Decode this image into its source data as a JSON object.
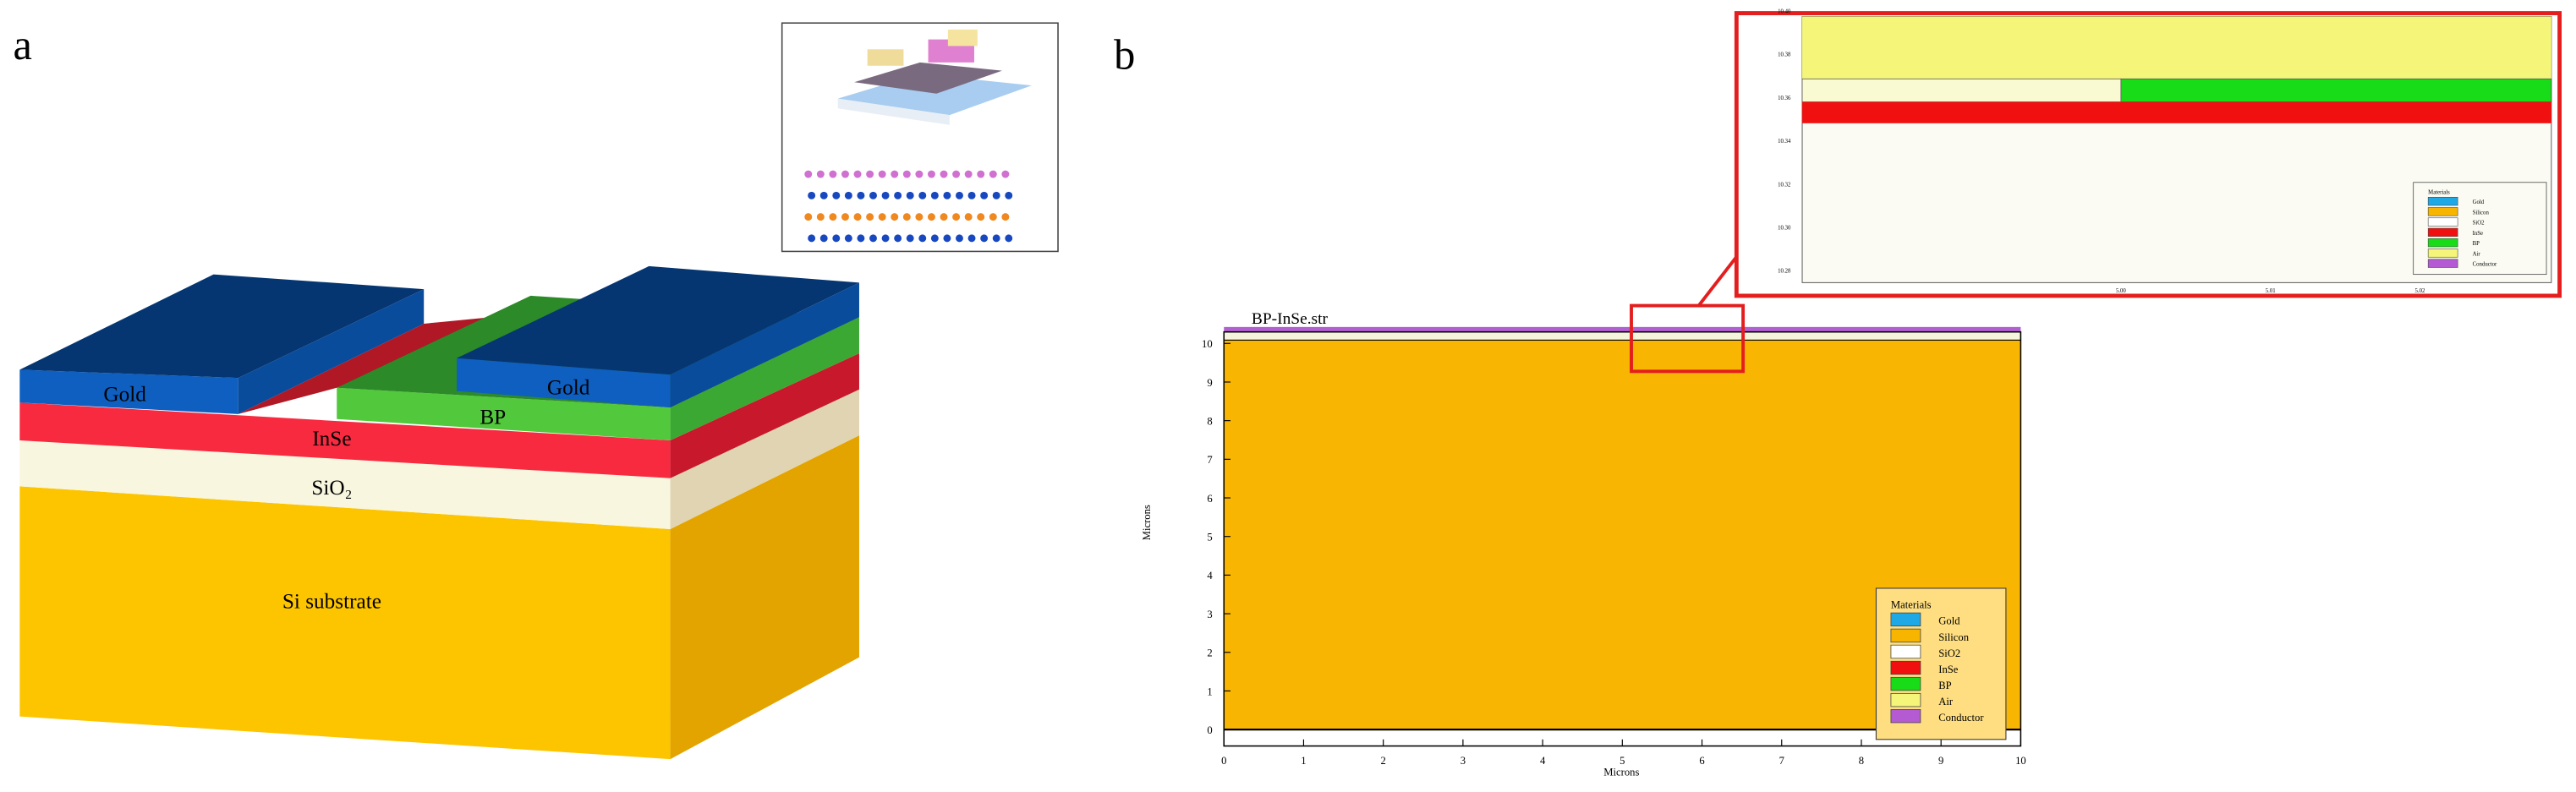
{
  "panel_a": {
    "label": "a",
    "layers": {
      "gold_left": "Gold",
      "gold_right": "Gold",
      "bp": "BP",
      "inse": "InSe",
      "sio2": "SiO₂",
      "substrate": "Si substrate"
    }
  },
  "panel_b": {
    "label": "b",
    "title": "BP-InSe.str",
    "x_label": "Microns",
    "y_label": "Microns",
    "xticks": [
      0,
      1,
      2,
      3,
      4,
      5,
      6,
      7,
      8,
      9,
      10
    ],
    "yticks": [
      0,
      1,
      2,
      3,
      4,
      5,
      6,
      7,
      8,
      9,
      10
    ],
    "legend": {
      "title": "Materials",
      "items": [
        {
          "name": "Gold",
          "color": "#1fa8e6"
        },
        {
          "name": "Silicon",
          "color": "#f7b500"
        },
        {
          "name": "SiO2",
          "color": "#ffffff"
        },
        {
          "name": "InSe",
          "color": "#f01010"
        },
        {
          "name": "BP",
          "color": "#18dc18"
        },
        {
          "name": "Air",
          "color": "#f5f57a"
        },
        {
          "name": "Conductor",
          "color": "#b45ad2"
        }
      ]
    },
    "zoom": {
      "yticks": [
        "10.28",
        "10.30",
        "10.32",
        "10.34",
        "10.36",
        "10.38",
        "10.40"
      ],
      "xticks": [
        "5.00",
        "5.01",
        "5.02"
      ]
    }
  }
}
